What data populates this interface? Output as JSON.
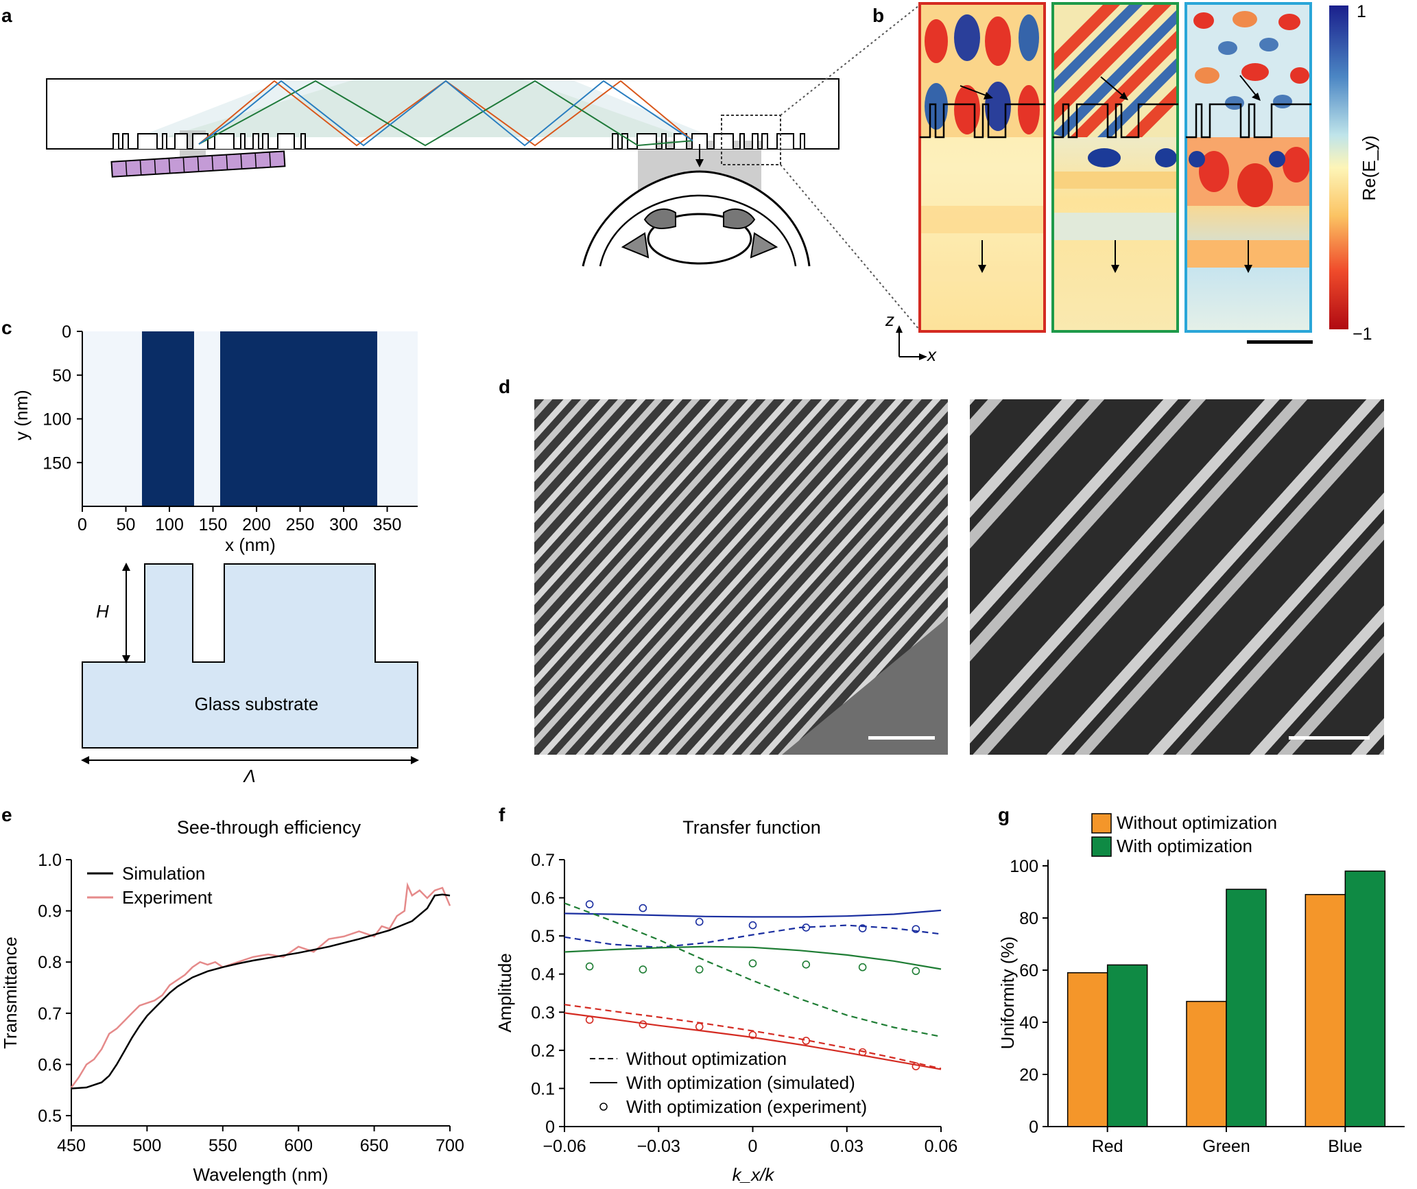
{
  "panels": {
    "a": {
      "label": "a"
    },
    "b": {
      "label": "b",
      "colorbar_max": "1",
      "colorbar_min": "−1",
      "colorbar_label": "Re(E_y)",
      "axis_z": "z",
      "axis_x": "x"
    },
    "c": {
      "label": "c",
      "xlabel": "x (nm)",
      "ylabel": "y (nm)",
      "xticks": [
        "0",
        "50",
        "100",
        "150",
        "200",
        "250",
        "300",
        "350"
      ],
      "yticks": [
        "0",
        "50",
        "100",
        "150"
      ],
      "height_label": "H",
      "substrate_label": "Glass substrate",
      "period_label": "Λ"
    },
    "d": {
      "label": "d"
    }
  },
  "colors": {
    "red": "#d42b22",
    "green": "#1e7d34",
    "blue": "#1a2ea0",
    "orange": "#f4962a",
    "bar_green": "#0f8a44",
    "navy": "#0a2d66",
    "lightblue": "#d6e6f5",
    "experiment_pink": "#e58a8a"
  },
  "chart_data": [
    {
      "panel_label": "e",
      "type": "line",
      "title": "See-through efficiency",
      "xlabel": "Wavelength (nm)",
      "ylabel": "Transmittance",
      "xlim": [
        450,
        700
      ],
      "ylim": [
        0.48,
        1.0
      ],
      "xticks": [
        "450",
        "500",
        "550",
        "600",
        "650",
        "700"
      ],
      "yticks": [
        "0.5",
        "0.6",
        "0.7",
        "0.8",
        "0.9",
        "1.0"
      ],
      "legend": "top-left",
      "series": [
        {
          "name": "Simulation",
          "x": [
            450,
            460,
            470,
            475,
            480,
            485,
            490,
            495,
            500,
            505,
            510,
            515,
            520,
            530,
            540,
            550,
            560,
            570,
            580,
            600,
            620,
            640,
            660,
            675,
            685,
            690,
            695,
            700
          ],
          "y": [
            0.553,
            0.555,
            0.565,
            0.578,
            0.6,
            0.626,
            0.652,
            0.675,
            0.695,
            0.71,
            0.725,
            0.74,
            0.752,
            0.77,
            0.782,
            0.79,
            0.797,
            0.803,
            0.808,
            0.818,
            0.83,
            0.845,
            0.862,
            0.88,
            0.905,
            0.93,
            0.932,
            0.93
          ]
        },
        {
          "name": "Experiment",
          "x": [
            450,
            455,
            460,
            465,
            470,
            475,
            480,
            485,
            490,
            495,
            500,
            505,
            510,
            515,
            520,
            525,
            530,
            535,
            540,
            545,
            550,
            560,
            570,
            580,
            590,
            600,
            610,
            620,
            630,
            640,
            650,
            655,
            660,
            665,
            670,
            672,
            675,
            680,
            685,
            690,
            695,
            700
          ],
          "y": [
            0.555,
            0.575,
            0.6,
            0.61,
            0.63,
            0.66,
            0.67,
            0.685,
            0.7,
            0.715,
            0.72,
            0.725,
            0.735,
            0.755,
            0.765,
            0.775,
            0.79,
            0.8,
            0.795,
            0.8,
            0.79,
            0.8,
            0.81,
            0.815,
            0.81,
            0.83,
            0.82,
            0.845,
            0.85,
            0.86,
            0.85,
            0.87,
            0.865,
            0.89,
            0.9,
            0.95,
            0.93,
            0.94,
            0.925,
            0.94,
            0.945,
            0.91
          ]
        }
      ]
    },
    {
      "panel_label": "f",
      "type": "line",
      "title": "Transfer function",
      "xlabel": "k_x/k",
      "ylabel": "Amplitude",
      "xlim": [
        -0.06,
        0.06
      ],
      "ylim": [
        0,
        0.7
      ],
      "xticks": [
        "−0.06",
        "−0.03",
        "0",
        "0.03",
        "0.06"
      ],
      "yticks": [
        "0",
        "0.1",
        "0.2",
        "0.3",
        "0.4",
        "0.5",
        "0.6",
        "0.7"
      ],
      "legend": "bottom-left",
      "legend_entries": [
        "Without optimization",
        "With optimization (simulated)",
        "With optimization (experiment)"
      ],
      "series": [
        {
          "color": "blue",
          "style": "solid",
          "x": [
            -0.06,
            -0.045,
            -0.03,
            -0.015,
            0,
            0.015,
            0.03,
            0.045,
            0.06
          ],
          "y": [
            0.559,
            0.557,
            0.554,
            0.551,
            0.55,
            0.55,
            0.552,
            0.557,
            0.567
          ]
        },
        {
          "color": "blue",
          "style": "dashed",
          "x": [
            -0.06,
            -0.045,
            -0.03,
            -0.015,
            0,
            0.015,
            0.03,
            0.045,
            0.06
          ],
          "y": [
            0.497,
            0.478,
            0.47,
            0.482,
            0.503,
            0.522,
            0.528,
            0.52,
            0.505
          ]
        },
        {
          "color": "blue",
          "style": "markers",
          "x": [
            -0.052,
            -0.035,
            -0.017,
            0,
            0.017,
            0.035,
            0.052
          ],
          "y": [
            0.583,
            0.573,
            0.537,
            0.528,
            0.522,
            0.52,
            0.518
          ]
        },
        {
          "color": "green",
          "style": "solid",
          "x": [
            -0.06,
            -0.045,
            -0.03,
            -0.015,
            0,
            0.015,
            0.03,
            0.045,
            0.06
          ],
          "y": [
            0.458,
            0.464,
            0.469,
            0.472,
            0.47,
            0.462,
            0.45,
            0.434,
            0.413
          ]
        },
        {
          "color": "green",
          "style": "dashed",
          "x": [
            -0.06,
            -0.045,
            -0.03,
            -0.015,
            0,
            0.015,
            0.03,
            0.045,
            0.06
          ],
          "y": [
            0.586,
            0.54,
            0.49,
            0.435,
            0.383,
            0.335,
            0.292,
            0.26,
            0.236
          ]
        },
        {
          "color": "green",
          "style": "markers",
          "x": [
            -0.052,
            -0.035,
            -0.017,
            0,
            0.017,
            0.035,
            0.052
          ],
          "y": [
            0.42,
            0.412,
            0.412,
            0.428,
            0.425,
            0.418,
            0.408
          ]
        },
        {
          "color": "red",
          "style": "solid",
          "x": [
            -0.06,
            -0.045,
            -0.03,
            -0.015,
            0,
            0.015,
            0.03,
            0.045,
            0.06
          ],
          "y": [
            0.298,
            0.282,
            0.265,
            0.25,
            0.234,
            0.215,
            0.194,
            0.172,
            0.15
          ]
        },
        {
          "color": "red",
          "style": "dashed",
          "x": [
            -0.06,
            -0.045,
            -0.03,
            -0.015,
            0,
            0.015,
            0.03,
            0.045,
            0.06
          ],
          "y": [
            0.32,
            0.303,
            0.287,
            0.27,
            0.251,
            0.23,
            0.206,
            0.18,
            0.152
          ]
        },
        {
          "color": "red",
          "style": "markers",
          "x": [
            -0.052,
            -0.035,
            -0.017,
            0,
            0.017,
            0.035,
            0.052
          ],
          "y": [
            0.28,
            0.268,
            0.262,
            0.24,
            0.225,
            0.195,
            0.158
          ]
        }
      ]
    },
    {
      "panel_label": "g",
      "type": "bar",
      "ylabel": "Uniformity (%)",
      "ylim": [
        0,
        100
      ],
      "yticks": [
        "0",
        "20",
        "40",
        "60",
        "80",
        "100"
      ],
      "categories": [
        "Red",
        "Green",
        "Blue"
      ],
      "legend": "top-left",
      "series": [
        {
          "name": "Without optimization",
          "values": [
            59,
            48,
            89
          ]
        },
        {
          "name": "With optimization",
          "values": [
            62,
            91,
            98
          ]
        }
      ]
    }
  ]
}
